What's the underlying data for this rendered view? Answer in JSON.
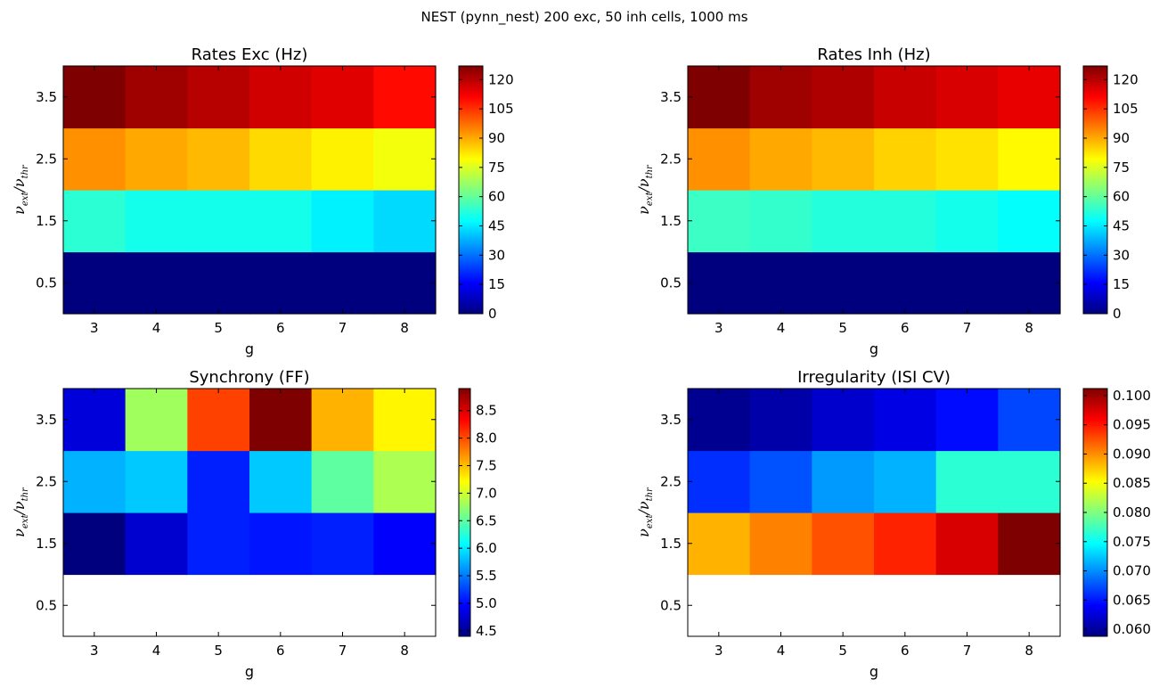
{
  "figure": {
    "suptitle": "NEST (pynn_nest) 200 exc, 50 inh cells, 1000 ms"
  },
  "ylabel_parts": {
    "base": "ν",
    "sub1": "ext",
    "slash": "/",
    "sub2": "thr"
  },
  "colormap_stops": [
    "#00007f",
    "#0000ff",
    "#007fff",
    "#00ffff",
    "#7fff7f",
    "#ffff00",
    "#ff7f00",
    "#ff0000",
    "#7f0000"
  ],
  "chart_data": [
    {
      "type": "heatmap",
      "title": "Rates Exc (Hz)",
      "xlabel": "g",
      "x": [
        3,
        4,
        5,
        6,
        7,
        8
      ],
      "x_ticks": [
        "3",
        "4",
        "5",
        "6",
        "7",
        "8"
      ],
      "y": [
        0.5,
        1.5,
        2.5,
        3.5
      ],
      "y_ticks": [
        "0.5",
        "1.5",
        "2.5",
        "3.5"
      ],
      "values": [
        [
          0,
          0,
          0,
          0,
          0,
          0
        ],
        [
          53,
          50,
          50,
          50,
          46,
          43
        ],
        [
          93,
          90,
          88,
          84,
          81,
          78
        ],
        [
          127,
          123,
          120,
          117,
          115,
          110
        ]
      ],
      "vmin": 0,
      "vmax": 127,
      "colorbar_ticks": [
        "0",
        "15",
        "30",
        "45",
        "60",
        "75",
        "90",
        "105",
        "120"
      ]
    },
    {
      "type": "heatmap",
      "title": "Rates Inh (Hz)",
      "xlabel": "g",
      "x": [
        3,
        4,
        5,
        6,
        7,
        8
      ],
      "x_ticks": [
        "3",
        "4",
        "5",
        "6",
        "7",
        "8"
      ],
      "y": [
        0.5,
        1.5,
        2.5,
        3.5
      ],
      "y_ticks": [
        "0.5",
        "1.5",
        "2.5",
        "3.5"
      ],
      "values": [
        [
          0,
          0,
          0,
          0,
          0,
          0
        ],
        [
          55,
          54,
          52,
          52,
          50,
          48
        ],
        [
          93,
          90,
          88,
          85,
          83,
          80
        ],
        [
          127,
          123,
          121,
          118,
          116,
          114
        ]
      ],
      "vmin": 0,
      "vmax": 127,
      "colorbar_ticks": [
        "0",
        "15",
        "30",
        "45",
        "60",
        "75",
        "90",
        "105",
        "120"
      ]
    },
    {
      "type": "heatmap",
      "title": "Synchrony (FF)",
      "xlabel": "g",
      "x": [
        3,
        4,
        5,
        6,
        7,
        8
      ],
      "x_ticks": [
        "3",
        "4",
        "5",
        "6",
        "7",
        "8"
      ],
      "y": [
        0.5,
        1.5,
        2.5,
        3.5
      ],
      "y_ticks": [
        "0.5",
        "1.5",
        "2.5",
        "3.5"
      ],
      "values": [
        [
          null,
          null,
          null,
          null,
          null,
          null
        ],
        [
          4.4,
          4.75,
          5.1,
          5.05,
          5.1,
          4.95
        ],
        [
          5.75,
          5.85,
          5.1,
          5.85,
          6.5,
          6.85
        ],
        [
          4.8,
          6.8,
          8.05,
          8.9,
          7.55,
          7.25
        ]
      ],
      "vmin": 4.4,
      "vmax": 8.9,
      "colorbar_ticks": [
        "4.5",
        "5.0",
        "5.5",
        "6.0",
        "6.5",
        "7.0",
        "7.5",
        "8.0",
        "8.5"
      ],
      "colorbar_tick_values": [
        4.5,
        5.0,
        5.5,
        6.0,
        6.5,
        7.0,
        7.5,
        8.0,
        8.5
      ]
    },
    {
      "type": "heatmap",
      "title": "Irregularity (ISI CV)",
      "xlabel": "g",
      "x": [
        3,
        4,
        5,
        6,
        7,
        8
      ],
      "x_ticks": [
        "3",
        "4",
        "5",
        "6",
        "7",
        "8"
      ],
      "y": [
        0.5,
        1.5,
        2.5,
        3.5
      ],
      "y_ticks": [
        "0.5",
        "1.5",
        "2.5",
        "3.5"
      ],
      "values": [
        [
          null,
          null,
          null,
          null,
          null,
          null
        ],
        [
          0.0885,
          0.0905,
          0.0925,
          0.0945,
          0.0975,
          0.1012
        ],
        [
          0.066,
          0.0675,
          0.0705,
          0.0715,
          0.0765,
          0.0765
        ],
        [
          0.0595,
          0.0605,
          0.062,
          0.063,
          0.0645,
          0.067
        ]
      ],
      "vmin": 0.0588,
      "vmax": 0.1012,
      "colorbar_ticks": [
        "0.060",
        "0.065",
        "0.070",
        "0.075",
        "0.080",
        "0.085",
        "0.090",
        "0.095",
        "0.100"
      ],
      "colorbar_tick_values": [
        0.06,
        0.065,
        0.07,
        0.075,
        0.08,
        0.085,
        0.09,
        0.095,
        0.1
      ]
    }
  ]
}
